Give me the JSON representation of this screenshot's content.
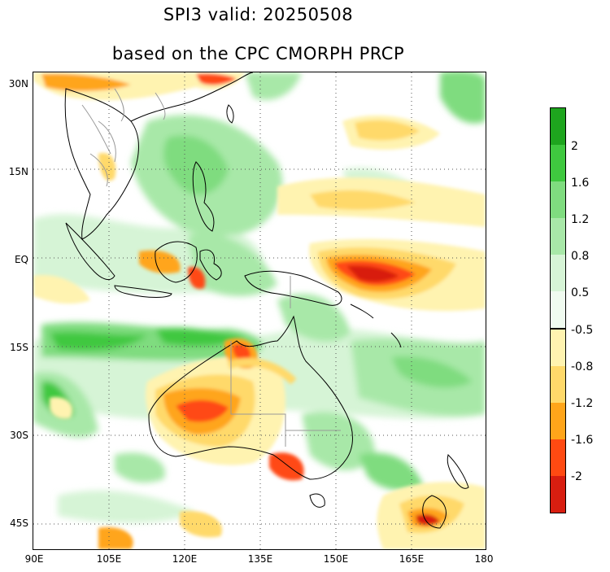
{
  "title": {
    "line1": "SPI3  valid: 20250508",
    "line2": "based on the CPC CMORPH PRCP"
  },
  "map": {
    "projection": "cylindrical equidistant",
    "lon_range": [
      90,
      180
    ],
    "lat_range": [
      -50,
      30
    ],
    "lat_labels": [
      "30N",
      "15N",
      "EQ",
      "15S",
      "30S",
      "45S"
    ],
    "lon_labels": [
      "90E",
      "105E",
      "120E",
      "135E",
      "150E",
      "165E",
      "180"
    ],
    "gridlines": "dotted"
  },
  "colorbar": {
    "wet": {
      "colors": [
        "#1ea51e",
        "#3fc83f",
        "#7fdc7f",
        "#a8e8a8",
        "#d6f4d6",
        "#f0fbf0"
      ],
      "labels": [
        "2",
        "1.6",
        "1.2",
        "0.8",
        "0.5"
      ]
    },
    "dry": {
      "colors": [
        "#fff3b0",
        "#ffd96a",
        "#ffa51a",
        "#ff4a12",
        "#d81e10"
      ],
      "labels": [
        "-0.5",
        "-0.8",
        "-1.2",
        "-1.6",
        "-2"
      ]
    }
  }
}
